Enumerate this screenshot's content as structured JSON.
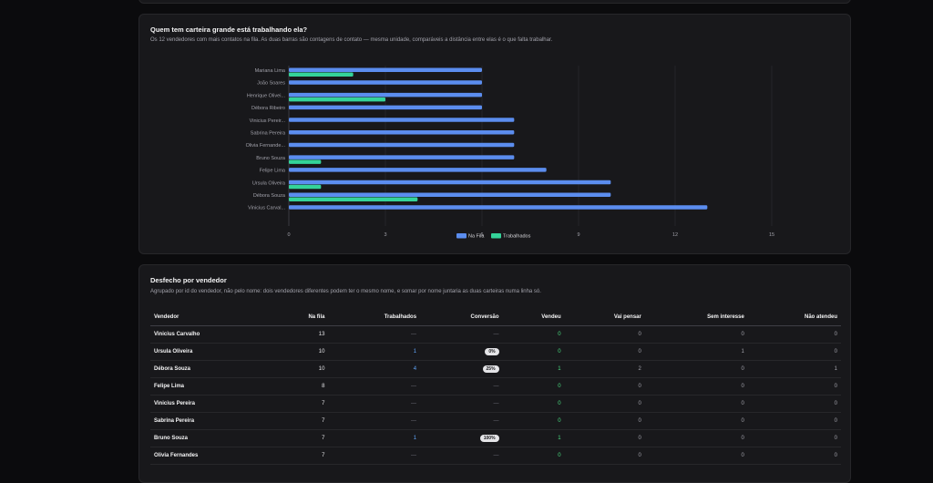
{
  "chart_card": {
    "title": "Quem tem carteira grande está trabalhando ela?",
    "subtitle": "Os 12 vendedores com mais contatos na fila. As duas barras são contagens de contato — mesma unidade, comparáveis a distância entre elas é o que falta trabalhar."
  },
  "chart_data": {
    "type": "bar",
    "orientation": "horizontal",
    "categories": [
      "Mariana Lima",
      "João Soares",
      "Henrique Olivei...",
      "Débora Ribeiro",
      "Vinicius Pereir...",
      "Sabrina Pereira",
      "Olivia Fernande...",
      "Bruno Souza",
      "Felipe Lima",
      "Ursula Oliveira",
      "Débora Souza",
      "Vinicius Carval..."
    ],
    "series": [
      {
        "name": "Na Fila",
        "values": [
          6,
          6,
          6,
          6,
          7,
          7,
          7,
          7,
          8,
          10,
          10,
          13
        ]
      },
      {
        "name": "Trabalhados",
        "values": [
          2,
          0,
          3,
          0,
          0,
          0,
          0,
          1,
          0,
          1,
          4,
          0
        ]
      }
    ],
    "xlim": [
      0,
      15
    ],
    "xticks": [
      "0",
      "3",
      "6",
      "9",
      "12",
      "15"
    ],
    "grid": true,
    "legend_position": "bottom",
    "colors": {
      "Na Fila": "#5b8def",
      "Trabalhados": "#34d399"
    }
  },
  "table_card": {
    "title": "Desfecho por vendedor",
    "subtitle": "Agrupado por id do vendedor, não pelo nome: dois vendedores diferentes podem ter o mesmo nome, e somar por nome juntaria as duas carteiras numa linha só.",
    "headers": [
      "Vendedor",
      "Na fila",
      "Trabalhados",
      "Conversão",
      "Vendeu",
      "Vai pensar",
      "Sem interesse",
      "Não atendeu"
    ],
    "rows": [
      [
        "Vinicius Carvalho",
        "13",
        "—",
        "—",
        "0",
        "0",
        "0",
        "0"
      ],
      [
        "Ursula Oliveira",
        "10",
        "1",
        "0%",
        "0",
        "0",
        "1",
        "0"
      ],
      [
        "Débora Souza",
        "10",
        "4",
        "25%",
        "1",
        "2",
        "0",
        "1"
      ],
      [
        "Felipe Lima",
        "8",
        "—",
        "—",
        "0",
        "0",
        "0",
        "0"
      ],
      [
        "Vinicius Pereira",
        "7",
        "—",
        "—",
        "0",
        "0",
        "0",
        "0"
      ],
      [
        "Sabrina Pereira",
        "7",
        "—",
        "—",
        "0",
        "0",
        "0",
        "0"
      ],
      [
        "Bruno Souza",
        "7",
        "1",
        "100%",
        "1",
        "0",
        "0",
        "0"
      ],
      [
        "Olivia Fernandes",
        "7",
        "—",
        "—",
        "0",
        "0",
        "0",
        "0"
      ]
    ]
  }
}
